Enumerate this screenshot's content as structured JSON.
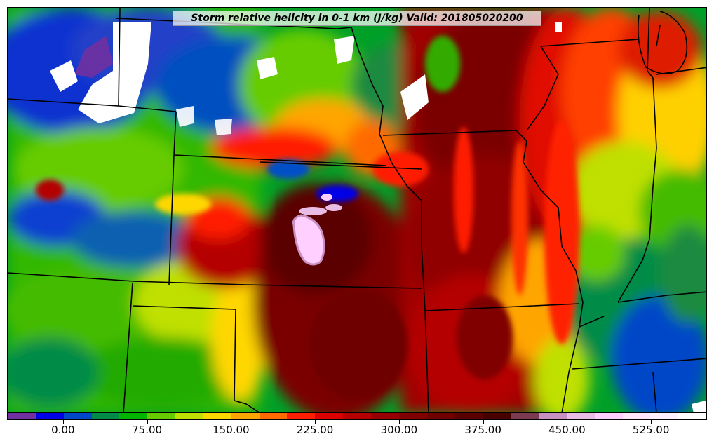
{
  "title": "Storm relative helicity in 0-1 km (J/kg) Valid: 201805020200",
  "colorbar": {
    "labels": [
      "0.00",
      "75.00",
      "150.00",
      "225.00",
      "300.00",
      "375.00",
      "450.00",
      "525.00"
    ],
    "tick_indices": [
      2,
      5,
      8,
      11,
      14,
      17,
      20,
      23
    ],
    "colors": [
      "#7030a0",
      "#0000e6",
      "#0046c8",
      "#008c46",
      "#00b400",
      "#66cc00",
      "#bfe000",
      "#ffd700",
      "#ffa500",
      "#ff6a00",
      "#ff1e00",
      "#dc0000",
      "#b40000",
      "#960000",
      "#800000",
      "#6e0000",
      "#5a0000",
      "#460000",
      "#7a3a50",
      "#c890c0",
      "#e8bce4",
      "#ffd0ff",
      "#ffe6ff",
      "#fff0ff",
      "#ffffff"
    ]
  },
  "map": {
    "field": "storm-relative-helicity",
    "units": "J/kg"
  }
}
